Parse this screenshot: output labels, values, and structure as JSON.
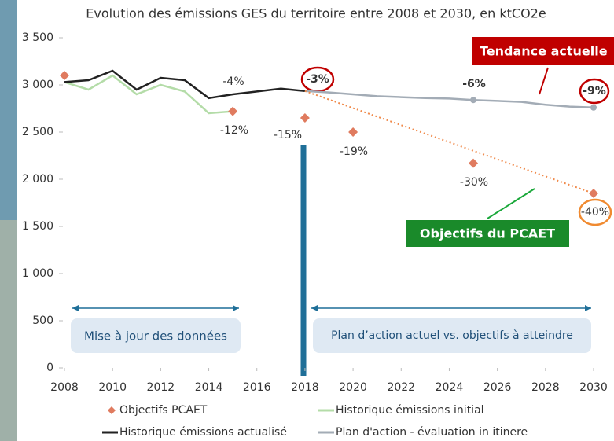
{
  "chart_data": {
    "type": "line",
    "title": "Evolution des émissions GES du territoire entre 2008 et 2030, en ktCO2e",
    "xlim": [
      2008,
      2030
    ],
    "xticks": [
      2008,
      2010,
      2012,
      2014,
      2016,
      2018,
      2020,
      2022,
      2024,
      2026,
      2028,
      2030
    ],
    "ylim": [
      0,
      3500
    ],
    "yticks": [
      0,
      {
        "value": 500,
        "label": "500"
      },
      {
        "value": 1000,
        "label": "1 000"
      },
      {
        "value": 1500,
        "label": "1 500"
      },
      {
        "value": 2000,
        "label": "2 000"
      },
      {
        "value": 2500,
        "label": "2 500"
      },
      {
        "value": 3000,
        "label": "3 000"
      },
      {
        "value": 3500,
        "label": "3 500"
      }
    ],
    "grid": false,
    "series": [
      {
        "name": "Objectifs PCAET",
        "type": "scatter",
        "color": "#e07b5f",
        "x": [
          2008,
          2015,
          2018,
          2020,
          2025,
          2030
        ],
        "values": [
          3100,
          2720,
          2650,
          2500,
          2170,
          1850
        ]
      },
      {
        "name": "Historique émissions initial",
        "type": "line",
        "color": "#b4dca8",
        "x": [
          2008,
          2009,
          2010,
          2011,
          2012,
          2013,
          2014,
          2015
        ],
        "values": [
          3030,
          2950,
          3100,
          2900,
          3000,
          2930,
          2700,
          2720
        ]
      },
      {
        "name": "Historique émissions actualisé",
        "type": "line",
        "color": "#222222",
        "x": [
          2008,
          2009,
          2010,
          2011,
          2012,
          2013,
          2014,
          2015,
          2016,
          2017,
          2018
        ],
        "values": [
          3030,
          3050,
          3150,
          2950,
          3075,
          3050,
          2860,
          2900,
          2930,
          2960,
          2935
        ]
      },
      {
        "name": "Plan d'action - évaluation in itinere",
        "type": "line",
        "color": "#a3acb6",
        "markers": [
          2025,
          2030
        ],
        "x": [
          2018,
          2019,
          2020,
          2021,
          2022,
          2023,
          2024,
          2025,
          2026,
          2027,
          2028,
          2029,
          2030
        ],
        "values": [
          2935,
          2920,
          2900,
          2880,
          2870,
          2860,
          2855,
          2840,
          2830,
          2820,
          2790,
          2770,
          2760
        ]
      },
      {
        "type": "line",
        "style": "dotted",
        "color": "#f08a4b",
        "x": [
          2018,
          2030
        ],
        "values": [
          2935,
          1850
        ]
      }
    ],
    "annotations": [
      "-4%",
      "-12%",
      "-15%",
      "-3%",
      "-19%",
      "-6%",
      "-30%",
      "-9%",
      "-40%"
    ],
    "callouts": [
      "Tendance actuelle",
      "Objectifs du PCAET"
    ],
    "periods": [
      "Mise à jour des données",
      "Plan d’action actuel vs. objectifs à atteindre"
    ]
  }
}
